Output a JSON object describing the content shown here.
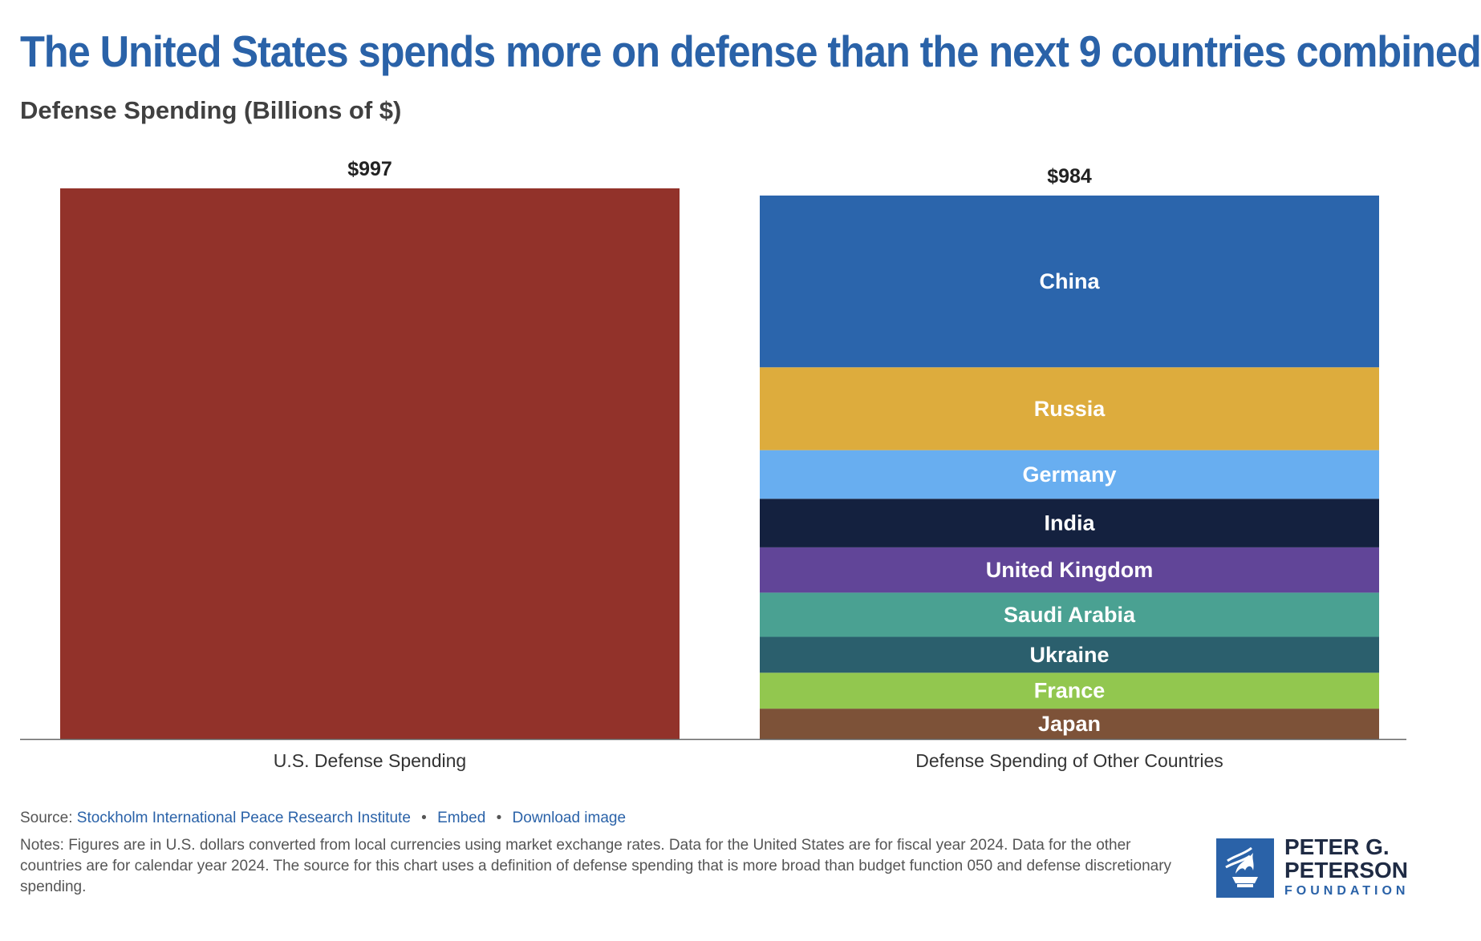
{
  "title": "The United States spends more on defense than the next 9 countries combined",
  "subtitle": "Defense Spending (Billions of $)",
  "chart_data": {
    "type": "bar",
    "stacked": true,
    "title": "The United States spends more on defense than the next 9 countries combined",
    "ylabel": "Defense Spending (Billions of $)",
    "xlabel": "",
    "ylim": [
      0,
      997
    ],
    "grid": false,
    "categories": [
      "U.S. Defense Spending",
      "Defense Spending of Other Countries"
    ],
    "totals": [
      997,
      984
    ],
    "total_labels": [
      "$997",
      "$984"
    ],
    "series": [
      {
        "name": "United States",
        "color": "#92322a",
        "values": [
          997,
          0
        ],
        "label": ""
      },
      {
        "name": "Japan",
        "color": "#7d5238",
        "values": [
          0,
          55
        ],
        "label": "Japan"
      },
      {
        "name": "France",
        "color": "#92c74f",
        "values": [
          0,
          65
        ],
        "label": "France"
      },
      {
        "name": "Ukraine",
        "color": "#2b5f6d",
        "values": [
          0,
          65
        ],
        "label": "Ukraine"
      },
      {
        "name": "Saudi Arabia",
        "color": "#4aa192",
        "values": [
          0,
          80
        ],
        "label": "Saudi Arabia"
      },
      {
        "name": "United Kingdom",
        "color": "#614598",
        "values": [
          0,
          82
        ],
        "label": "United Kingdom"
      },
      {
        "name": "India",
        "color": "#14213f",
        "values": [
          0,
          88
        ],
        "label": "India"
      },
      {
        "name": "Germany",
        "color": "#68aef0",
        "values": [
          0,
          88
        ],
        "label": "Germany"
      },
      {
        "name": "Russia",
        "color": "#ddac3d",
        "values": [
          0,
          150
        ],
        "label": "Russia"
      },
      {
        "name": "China",
        "color": "#2b65ac",
        "values": [
          0,
          311
        ],
        "label": "China"
      }
    ]
  },
  "footer": {
    "source_prefix": "Source:",
    "source_link": "Stockholm International Peace Research Institute",
    "embed_label": "Embed",
    "download_label": "Download image",
    "separator": "•",
    "notes": "Notes: Figures are in U.S. dollars converted from local currencies using market exchange rates. Data for the United States are for fiscal year 2024. Data for the other countries are for calendar year 2024. The source for this chart uses a definition of defense spending that is more broad than budget function 050 and defense discretionary spending."
  },
  "logo": {
    "line1": "PETER G.",
    "line2": "PETERSON",
    "line3": "FOUNDATION"
  },
  "colors": {
    "title": "#2a62a8",
    "axis": "#666666",
    "segment_label": "#ffffff"
  }
}
